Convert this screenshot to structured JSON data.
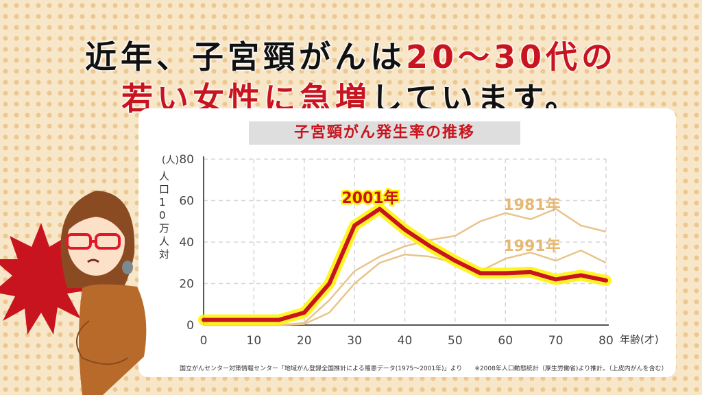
{
  "headline": {
    "line1_dark": "近年、子宮頸がんは",
    "line1_red": "20～30代の",
    "line2_red": "若い女性に急増",
    "line2_dark": "しています。"
  },
  "chart_data": {
    "type": "line",
    "title": "子宮頸がん発生率の推移",
    "ylabel_unit": "(人)",
    "ylabel": "人口10万人対",
    "xlabel": "年齢(才)",
    "xlim": [
      0,
      80
    ],
    "ylim": [
      0,
      80
    ],
    "x_ticks": [
      0,
      10,
      20,
      30,
      40,
      50,
      60,
      70,
      80
    ],
    "y_ticks": [
      0,
      20,
      40,
      60,
      80
    ],
    "grid": true,
    "series": [
      {
        "name": "2001年",
        "color": "#c8141e",
        "highlight": "#fff200",
        "x": [
          0,
          5,
          10,
          15,
          20,
          25,
          30,
          35,
          40,
          45,
          50,
          55,
          60,
          65,
          70,
          75,
          80
        ],
        "values": [
          2.5,
          2.5,
          2.5,
          2.5,
          6,
          20,
          48,
          56,
          46,
          38,
          31,
          25,
          25,
          25.5,
          22,
          24,
          21.5
        ]
      },
      {
        "name": "1981年",
        "color": "#e8c48a",
        "x": [
          0,
          5,
          10,
          15,
          20,
          25,
          30,
          35,
          40,
          45,
          50,
          55,
          60,
          65,
          70,
          75,
          80
        ],
        "values": [
          0,
          0,
          0,
          0,
          1,
          12,
          26,
          33,
          38,
          41,
          43,
          50,
          54,
          51,
          56,
          48,
          45
        ]
      },
      {
        "name": "1991年",
        "color": "#e8c48a",
        "x": [
          0,
          5,
          10,
          15,
          20,
          25,
          30,
          35,
          40,
          45,
          50,
          55,
          60,
          65,
          70,
          75,
          80
        ],
        "values": [
          0,
          0,
          0,
          0,
          0.5,
          6,
          20,
          30,
          34,
          33,
          30,
          26,
          32,
          35,
          31,
          36,
          30
        ]
      }
    ]
  },
  "source_note": "国立がんセンター対策情報センター「地域がん登録全国推計による罹患データ(1975～2001年)」より　　※2008年人口動態統計（厚生労働省)より推計。（上皮内がんを含む）"
}
